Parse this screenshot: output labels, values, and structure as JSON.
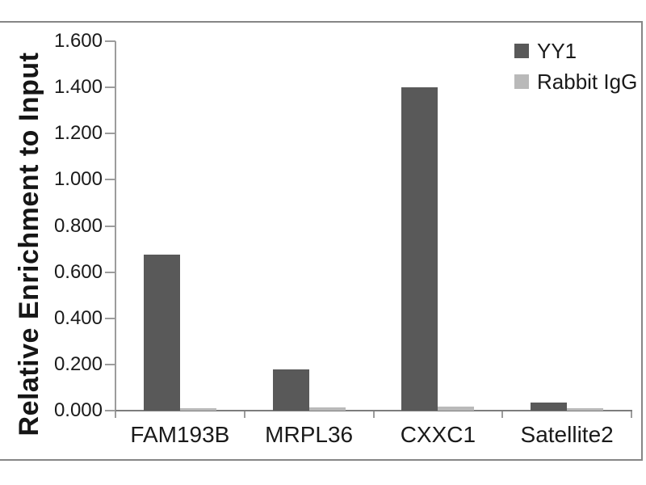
{
  "frame": {
    "border_color": "#868686"
  },
  "chart_data": {
    "type": "bar",
    "title": "",
    "ylabel": "Relative Enrichment to Input",
    "xlabel": "",
    "categories": [
      "FAM193B",
      "MRPL36",
      "CXXC1",
      "Satellite2"
    ],
    "series": [
      {
        "name": "YY1",
        "color": "#595959",
        "values": [
          0.675,
          0.18,
          1.4,
          0.035
        ]
      },
      {
        "name": "Rabbit IgG",
        "color": "#b9b9b9",
        "values": [
          0.012,
          0.014,
          0.018,
          0.01
        ]
      }
    ],
    "ylim": [
      0,
      1.6
    ],
    "ytick_step": 0.2,
    "ytick_labels": [
      "0.000",
      "0.200",
      "0.400",
      "0.600",
      "0.800",
      "1.000",
      "1.200",
      "1.400",
      "1.600"
    ],
    "grid": false,
    "legend_position": "top-right",
    "axis_color": "#9c9c9c",
    "baseline_color": "#7d7d7d",
    "text_color": "#1a1a1a"
  }
}
